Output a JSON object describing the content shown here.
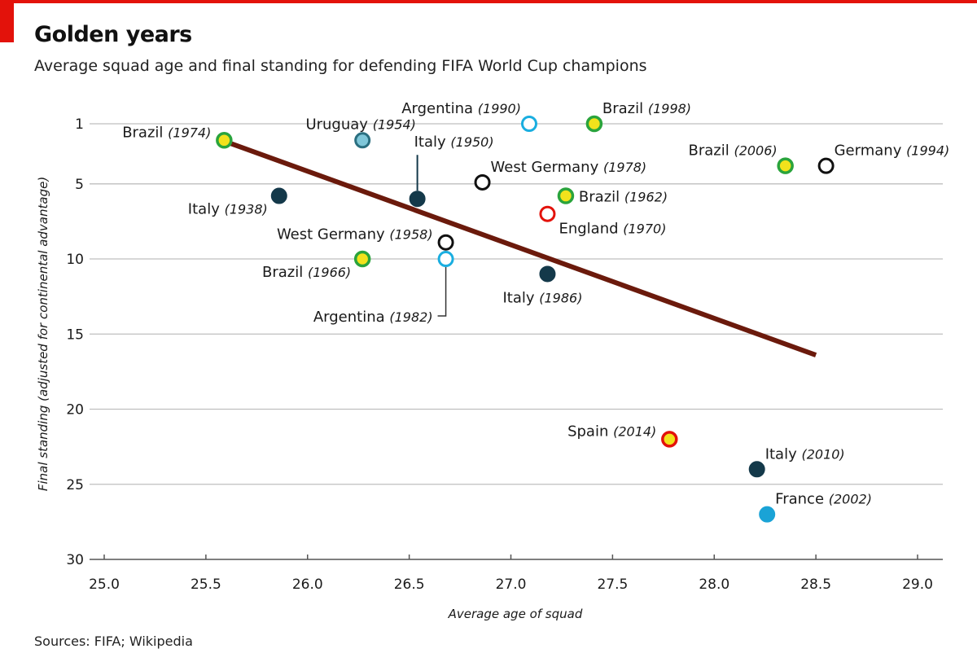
{
  "title": "Golden years",
  "subtitle": "Average squad age and final standing for defending FIFA World Cup champions",
  "source": "Sources: FIFA; Wikipedia",
  "colors": {
    "accent_red": "#e3120b",
    "trend_line": "#6b1a0c",
    "grid": "#bfbfbf"
  },
  "chart_data": {
    "type": "scatter",
    "xlabel": "Average age of squad",
    "ylabel": "Final standing (adjusted for continental advantage)",
    "xlim": [
      25.0,
      29.0
    ],
    "ylim": [
      30,
      0
    ],
    "x_ticks": [
      25.0,
      25.5,
      26.0,
      26.5,
      27.0,
      27.5,
      28.0,
      28.5,
      29.0
    ],
    "x_tick_labels": [
      "25.0",
      "25.5",
      "26.0",
      "26.5",
      "27.0",
      "27.5",
      "28.0",
      "28.5",
      "29.0"
    ],
    "y_ticks": [
      1,
      5,
      10,
      15,
      20,
      25,
      30
    ],
    "y_tick_labels": [
      "1",
      "5",
      "10",
      "15",
      "20",
      "25",
      "30"
    ],
    "y_inverted": true,
    "grid": true,
    "trend_line": {
      "x": [
        25.6,
        28.5
      ],
      "y": [
        2.2,
        16.4
      ]
    },
    "points": [
      {
        "country": "Brazil",
        "year": "(1974)",
        "x": 25.59,
        "y": 2.1,
        "style": "yellow-green",
        "label_pos": "left"
      },
      {
        "country": "Italy",
        "year": "(1938)",
        "x": 25.86,
        "y": 5.8,
        "style": "navy",
        "label_pos": "below-left"
      },
      {
        "country": "Uruguay",
        "year": "(1954)",
        "x": 26.27,
        "y": 2.1,
        "style": "lightblue",
        "label_pos": "above"
      },
      {
        "country": "Brazil",
        "year": "(1966)",
        "x": 26.27,
        "y": 10.0,
        "style": "yellow-green",
        "label_pos": "below-left"
      },
      {
        "country": "Italy",
        "year": "(1950)",
        "x": 26.54,
        "y": 6.0,
        "style": "navy",
        "label_pos": "above-leader"
      },
      {
        "country": "West Germany",
        "year": "(1958)",
        "x": 26.68,
        "y": 8.9,
        "style": "black-ring",
        "label_pos": "left"
      },
      {
        "country": "Argentina",
        "year": "(1982)",
        "x": 26.68,
        "y": 10.0,
        "style": "cyan-ring",
        "label_pos": "below-leader"
      },
      {
        "country": "West Germany",
        "year": "(1978)",
        "x": 26.86,
        "y": 4.9,
        "style": "black-ring",
        "label_pos": "above-right"
      },
      {
        "country": "Argentina",
        "year": "(1990)",
        "x": 27.09,
        "y": 1.0,
        "style": "cyan-ring",
        "label_pos": "above-left"
      },
      {
        "country": "England",
        "year": "(1970)",
        "x": 27.18,
        "y": 7.0,
        "style": "red-ring",
        "label_pos": "below-right"
      },
      {
        "country": "Italy",
        "year": "(1986)",
        "x": 27.18,
        "y": 11.0,
        "style": "navy",
        "label_pos": "below"
      },
      {
        "country": "Brazil",
        "year": "(1962)",
        "x": 27.27,
        "y": 5.8,
        "style": "yellow-green",
        "label_pos": "right"
      },
      {
        "country": "Brazil",
        "year": "(1998)",
        "x": 27.41,
        "y": 1.0,
        "style": "yellow-green",
        "label_pos": "above-right"
      },
      {
        "country": "Spain",
        "year": "(2014)",
        "x": 27.78,
        "y": 22.0,
        "style": "yellow-red",
        "label_pos": "left"
      },
      {
        "country": "Italy",
        "year": "(2010)",
        "x": 28.21,
        "y": 24.0,
        "style": "navy",
        "label_pos": "above-right"
      },
      {
        "country": "France",
        "year": "(2002)",
        "x": 28.26,
        "y": 27.0,
        "style": "cyan",
        "label_pos": "above-right"
      },
      {
        "country": "Brazil",
        "year": "(2006)",
        "x": 28.35,
        "y": 3.8,
        "style": "yellow-green",
        "label_pos": "above-left"
      },
      {
        "country": "Germany",
        "year": "(1994)",
        "x": 28.55,
        "y": 3.8,
        "style": "black-ring",
        "label_pos": "above-right"
      }
    ]
  }
}
